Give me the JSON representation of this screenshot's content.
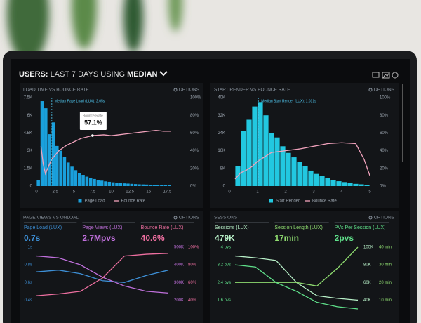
{
  "header": {
    "title_parts": [
      "USERS:",
      "LAST 7 DAYS",
      "USING",
      "MEDIAN"
    ]
  },
  "chart_data": [
    {
      "type": "histogram",
      "title": "LOAD TIME VS BOUNCE RATE",
      "options_label": "OPTIONS",
      "bins": [
        0,
        0.5,
        1,
        1.5,
        2,
        2.5,
        3,
        3.5,
        4,
        4.5,
        5,
        5.5,
        6,
        6.5,
        7,
        7.5,
        8,
        8.5,
        9,
        9.5,
        10,
        10.5,
        11,
        11.5,
        12,
        12.5,
        13,
        13.5,
        14,
        14.5,
        15,
        15.5,
        16,
        16.5,
        17,
        17.5,
        18
      ],
      "series": [
        {
          "name": "Page Load",
          "color": "#1aa0dc",
          "values": [
            500,
            7200,
            6600,
            4400,
            5400,
            3400,
            3000,
            2500,
            2000,
            1650,
            1350,
            1100,
            950,
            800,
            700,
            600,
            520,
            460,
            400,
            360,
            320,
            290,
            260,
            230,
            210,
            190,
            170,
            150,
            140,
            130,
            120,
            110,
            100,
            90,
            80,
            70
          ]
        },
        {
          "name": "Bounce Rate",
          "color": "#f2a3bd",
          "axis": "y2",
          "x": [
            0.6,
            0.9,
            1.2,
            1.6,
            2,
            2.5,
            3,
            4,
            5,
            6,
            7.5,
            9,
            10,
            11,
            12,
            13,
            14,
            15,
            16,
            17,
            18
          ],
          "values": [
            45,
            25,
            14,
            22,
            30,
            35,
            40,
            46,
            50,
            54,
            57.1,
            58,
            57,
            58,
            59,
            60,
            61,
            62,
            63,
            62,
            62
          ]
        }
      ],
      "xlim": [
        0,
        20
      ],
      "xticks": [
        0,
        2.5,
        5,
        7.5,
        10,
        12.5,
        15,
        17.5
      ],
      "ylim": [
        0,
        7500
      ],
      "yticks": [
        0,
        {
          "value": 1500,
          "label": "1.5K"
        },
        {
          "value": 3000,
          "label": "3K"
        },
        {
          "value": 4500,
          "label": "4.5K"
        },
        {
          "value": 6000,
          "label": "6K"
        },
        {
          "value": 7500,
          "label": "7.5K"
        }
      ],
      "y2lim": [
        0,
        100
      ],
      "y2ticks": [
        {
          "value": 0,
          "label": "0%"
        },
        {
          "value": 20,
          "label": "20%"
        },
        {
          "value": 40,
          "label": "40%"
        },
        {
          "value": 60,
          "label": "60%"
        },
        {
          "value": 80,
          "label": "80%"
        },
        {
          "value": 100,
          "label": "100%"
        }
      ],
      "annotation": {
        "text": "Median Page Load (LUX): 2.05s",
        "x": 2.05
      },
      "tooltip": {
        "title": "Bounce Rate",
        "x": 7.5,
        "value": 57.1,
        "value_label": "57.1%"
      }
    },
    {
      "type": "histogram",
      "title": "START RENDER VS BOUNCE RATE",
      "options_label": "OPTIONS",
      "bins": [
        0.2,
        0.4,
        0.6,
        0.8,
        1,
        1.2,
        1.4,
        1.6,
        1.8,
        2,
        2.2,
        2.4,
        2.6,
        2.8,
        3,
        3.2,
        3.4,
        3.6,
        3.8,
        4,
        4.2,
        4.4,
        4.6,
        4.8,
        5
      ],
      "series": [
        {
          "name": "Start Render",
          "color": "#22c8e0",
          "values": [
            9000,
            25000,
            30000,
            36000,
            38000,
            32000,
            24000,
            22000,
            18000,
            15000,
            13000,
            11000,
            9000,
            7000,
            5500,
            4500,
            3500,
            2800,
            2200,
            1800,
            1400,
            1000,
            800,
            600
          ]
        },
        {
          "name": "Bounce Rate",
          "color": "#f2a3bd",
          "axis": "y2",
          "x": [
            0.2,
            0.4,
            0.6,
            0.8,
            1,
            1.2,
            1.5,
            2,
            2.5,
            3,
            3.5,
            4,
            4.5,
            4.8,
            5
          ],
          "values": [
            8,
            15,
            18,
            22,
            28,
            32,
            38,
            40,
            42,
            45,
            48,
            49,
            48,
            30,
            12
          ]
        }
      ],
      "xlim": [
        0,
        5.2
      ],
      "xticks": [
        0,
        1,
        2,
        3,
        4,
        5
      ],
      "ylim": [
        0,
        40000
      ],
      "yticks": [
        0,
        {
          "value": 8000,
          "label": "8K"
        },
        {
          "value": 16000,
          "label": "16K"
        },
        {
          "value": 24000,
          "label": "24K"
        },
        {
          "value": 32000,
          "label": "32K"
        },
        {
          "value": 40000,
          "label": "40K"
        }
      ],
      "y2lim": [
        0,
        100
      ],
      "y2ticks": [
        {
          "value": 0,
          "label": "0%"
        },
        {
          "value": 20,
          "label": "20%"
        },
        {
          "value": 40,
          "label": "40%"
        },
        {
          "value": 60,
          "label": "60%"
        },
        {
          "value": 80,
          "label": "80%"
        },
        {
          "value": 100,
          "label": "100%"
        }
      ],
      "annotation": {
        "text": "Median Start Render (LUX): 1.031s",
        "x": 1.031
      }
    },
    {
      "type": "line",
      "title": "PAGE VIEWS VS ONLOAD",
      "options_label": "OPTIONS",
      "categories": [
        null,
        null,
        null,
        null,
        null,
        null,
        null
      ],
      "stats": [
        {
          "label": "Page Load (LUX)",
          "value": "0.7s"
        },
        {
          "label": "Page Views (LUX)",
          "value": "2.7Mpvs"
        },
        {
          "label": "Bounce Rate (LUX)",
          "value": "40.6%"
        }
      ],
      "series": [
        {
          "name": "Page Load",
          "color": "#3d8fd6",
          "axis": "left",
          "ylim": [
            0.3,
            1
          ],
          "yticks": [
            {
              "value": 1,
              "label": "1s"
            },
            {
              "value": 0.8,
              "label": "0.8s"
            },
            {
              "value": 0.6,
              "label": "0.6s"
            },
            {
              "value": 0.4,
              "label": "0.4s"
            }
          ],
          "values": [
            0.72,
            0.74,
            0.7,
            0.62,
            0.6,
            0.68,
            0.74
          ]
        },
        {
          "name": "Page Views",
          "color": "#c070dc",
          "axis": "right",
          "ylim": [
            150000,
            500000
          ],
          "yticks": [
            {
              "value": 500000,
              "label": "500K"
            },
            {
              "value": 400000,
              "label": "400K"
            },
            {
              "value": 300000,
              "label": "300K"
            },
            {
              "value": 200000,
              "label": "200K"
            }
          ],
          "values": [
            450000,
            440000,
            400000,
            330000,
            280000,
            250000,
            240000
          ]
        },
        {
          "name": "Bounce Rate",
          "color": "#ee6fa0",
          "axis": "right",
          "ylim": [
            30,
            100
          ],
          "yticks": [
            {
              "value": 100,
              "label": "100%"
            },
            {
              "value": 80,
              "label": "80%"
            },
            {
              "value": 60,
              "label": "60%"
            },
            {
              "value": 40,
              "label": "40%"
            }
          ],
          "values": [
            45,
            47,
            50,
            65,
            90,
            92,
            93
          ]
        }
      ]
    },
    {
      "type": "line",
      "title": "SESSIONS",
      "options_label": "OPTIONS",
      "categories": [
        null,
        null,
        null,
        null,
        null,
        null,
        null
      ],
      "stats": [
        {
          "label": "Sessions (LUX)",
          "value": "479K"
        },
        {
          "label": "Session Length (LUX)",
          "value": "17min"
        },
        {
          "label": "PVs Per Session (LUX)",
          "value": "2pvs"
        }
      ],
      "series": [
        {
          "name": "Sessions",
          "color": "#b8f0c8",
          "axis": "right",
          "ylim": [
            30000,
            100000
          ],
          "yticks": [
            {
              "value": 100000,
              "label": "100K"
            },
            {
              "value": 80000,
              "label": "80K"
            },
            {
              "value": 60000,
              "label": "60K"
            },
            {
              "value": 40000,
              "label": "40K"
            }
          ],
          "values": [
            90000,
            88000,
            85000,
            60000,
            45000,
            42000,
            40000
          ]
        },
        {
          "name": "Session Length",
          "color": "#8fdc70",
          "axis": "right",
          "ylim": [
            5,
            40
          ],
          "yticks": [
            {
              "value": 40,
              "label": "40 min"
            },
            {
              "value": 30,
              "label": "30 min"
            },
            {
              "value": 20,
              "label": "20 min"
            },
            {
              "value": 10,
              "label": "10 min"
            }
          ],
          "values": [
            20,
            20,
            20,
            20,
            18,
            28,
            40
          ]
        },
        {
          "name": "PVs Per Session",
          "color": "#5fe08a",
          "axis": "left",
          "ylim": [
            1.2,
            4
          ],
          "yticks": [
            {
              "value": 4,
              "label": "4 pvs"
            },
            {
              "value": 3.2,
              "label": "3.2 pvs"
            },
            {
              "value": 2.4,
              "label": "2.4 pvs"
            },
            {
              "value": 1.6,
              "label": "1.6 pvs"
            }
          ],
          "values": [
            3.2,
            3.1,
            2.4,
            2.0,
            1.5,
            1.3,
            1.2
          ]
        }
      ]
    }
  ]
}
